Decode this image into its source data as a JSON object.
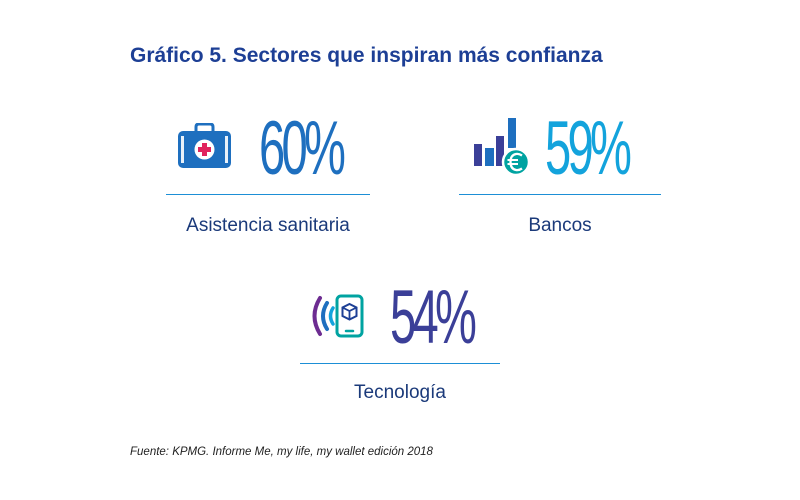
{
  "title": "Gráfico 5. Sectores que inspiran más confianza",
  "source": "Fuente: KPMG. Informe Me, my life, my wallet edición 2018",
  "colors": {
    "title": "#1d3f95",
    "health": "#1e6fbf",
    "banks": "#13a3dc",
    "tech": "#3b3f98",
    "tech_wave": "#6d2c91",
    "teal": "#00a3a1",
    "rule": "#1d8fd6"
  },
  "icons": {
    "health": "medical-kit-icon",
    "banks": "bar-chart-euro-icon",
    "tech": "wireless-tablet-icon"
  },
  "chart_data": {
    "type": "table",
    "title": "Gráfico 5. Sectores que inspiran más confianza",
    "categories": [
      "Asistencia sanitaria",
      "Bancos",
      "Tecnología"
    ],
    "values": [
      60,
      59,
      54
    ],
    "value_labels": [
      "60%",
      "59%",
      "54%"
    ],
    "unit": "%"
  }
}
